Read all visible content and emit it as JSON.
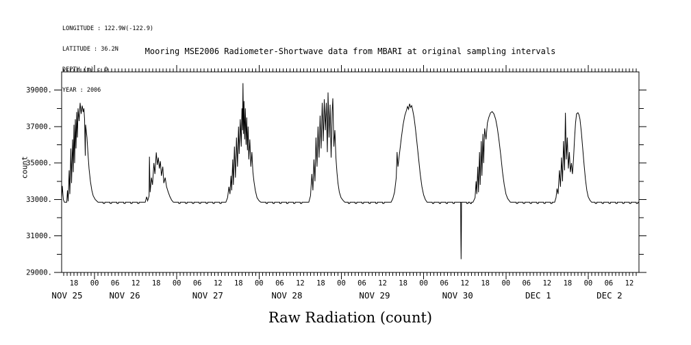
{
  "page": {
    "background": "#ffffff",
    "text_color": "#000000"
  },
  "header": {
    "meta_lines": [
      "LONGITUDE : 122.9W(-122.9)",
      "LATITUDE : 36.2N",
      "DEPTH (m) : 0",
      "YEAR : 2006"
    ]
  },
  "chart_data": {
    "type": "line",
    "title": "Mooring MSE2006 Radiometer-Shortwave data from MBARI at original sampling intervals",
    "xlabel": "Raw Radiation (count)",
    "ylabel": "count",
    "line_color": "#000000",
    "grid": false,
    "legend": "none",
    "y_axis": {
      "range": [
        29000,
        40000
      ],
      "major_ticks": [
        29000,
        31000,
        33000,
        35000,
        37000,
        39000
      ],
      "major_tick_labels": [
        "29000.",
        "31000.",
        "33000.",
        "35000.",
        "37000.",
        "39000."
      ],
      "minor_step": 1000
    },
    "x_axis": {
      "units": "hours since NOV 25 00:00",
      "range_hours": [
        14.4,
        182.8
      ],
      "minor_tick_every_h": 1,
      "labeled_tick_every_h": 6,
      "hour_label_cycle": [
        "00",
        "06",
        "12",
        "18"
      ],
      "date_labels": [
        {
          "label": "NOV 25",
          "t": 16.0
        },
        {
          "label": "NOV 26",
          "t": 32.8
        },
        {
          "label": "NOV 27",
          "t": 57.0
        },
        {
          "label": "NOV 28",
          "t": 80.1
        },
        {
          "label": "NOV 29",
          "t": 105.7
        },
        {
          "label": "NOV 30",
          "t": 129.9
        },
        {
          "label": "DEC  1",
          "t": 153.4
        },
        {
          "label": "DEC  2",
          "t": 174.2
        }
      ]
    },
    "baseline_count": 32850,
    "notch_count": 32780,
    "baseline_notch_times_h": [
      26.5,
      28.5,
      30.5,
      32.5,
      34.5,
      36.5,
      48.5,
      50.5,
      52.5,
      54.5,
      56.5,
      58.5,
      60.5,
      74,
      76,
      78,
      80,
      82,
      84,
      98,
      100,
      102,
      104,
      106,
      108,
      122.5,
      124.5,
      126.5,
      128.5,
      132.5,
      133.5,
      147,
      149,
      151,
      153,
      155,
      157,
      170,
      172,
      174,
      176,
      178,
      180,
      182
    ],
    "series": [
      [
        14.4,
        33060
      ],
      [
        14.6,
        33740
      ],
      [
        14.9,
        33000
      ],
      [
        15.2,
        32850
      ],
      [
        15.9,
        32850
      ],
      [
        16.1,
        33500
      ],
      [
        16.3,
        32900
      ],
      [
        16.6,
        34600
      ],
      [
        16.8,
        33300
      ],
      [
        17.1,
        35800
      ],
      [
        17.3,
        33900
      ],
      [
        17.6,
        36300
      ],
      [
        17.8,
        34500
      ],
      [
        18.0,
        37100
      ],
      [
        18.2,
        35000
      ],
      [
        18.4,
        37400
      ],
      [
        18.6,
        35800
      ],
      [
        18.8,
        37800
      ],
      [
        19.0,
        36400
      ],
      [
        19.2,
        38000
      ],
      [
        19.5,
        37300
      ],
      [
        19.8,
        38300
      ],
      [
        20.1,
        37700
      ],
      [
        20.4,
        38150
      ],
      [
        20.7,
        37800
      ],
      [
        20.9,
        38000
      ],
      [
        21.1,
        37400
      ],
      [
        21.3,
        35400
      ],
      [
        21.4,
        37100
      ],
      [
        21.8,
        36400
      ],
      [
        22.1,
        35500
      ],
      [
        22.4,
        34700
      ],
      [
        22.8,
        34000
      ],
      [
        23.2,
        33500
      ],
      [
        23.6,
        33200
      ],
      [
        24.2,
        33000
      ],
      [
        25.0,
        32850
      ],
      [
        38.8,
        32850
      ],
      [
        39.2,
        33150
      ],
      [
        39.5,
        32930
      ],
      [
        39.9,
        33200
      ],
      [
        40.0,
        35350
      ],
      [
        40.2,
        33400
      ],
      [
        40.6,
        34200
      ],
      [
        40.9,
        33800
      ],
      [
        41.3,
        35000
      ],
      [
        41.6,
        34400
      ],
      [
        42.0,
        35580
      ],
      [
        42.3,
        34900
      ],
      [
        42.6,
        35300
      ],
      [
        42.9,
        34700
      ],
      [
        43.2,
        35100
      ],
      [
        43.5,
        34300
      ],
      [
        43.9,
        34800
      ],
      [
        44.2,
        33900
      ],
      [
        44.6,
        34200
      ],
      [
        45.0,
        33700
      ],
      [
        45.5,
        33400
      ],
      [
        46.0,
        33150
      ],
      [
        46.5,
        32960
      ],
      [
        47.0,
        32850
      ],
      [
        62.3,
        32850
      ],
      [
        62.8,
        33100
      ],
      [
        63.2,
        33700
      ],
      [
        63.5,
        33300
      ],
      [
        63.8,
        34300
      ],
      [
        64.0,
        33500
      ],
      [
        64.3,
        35200
      ],
      [
        64.5,
        33800
      ],
      [
        64.8,
        35900
      ],
      [
        65.1,
        34200
      ],
      [
        65.4,
        36400
      ],
      [
        65.7,
        34800
      ],
      [
        66.0,
        37000
      ],
      [
        66.2,
        35500
      ],
      [
        66.5,
        37400
      ],
      [
        66.8,
        35900
      ],
      [
        67.0,
        38000
      ],
      [
        67.15,
        36800
      ],
      [
        67.3,
        39380
      ],
      [
        67.45,
        36600
      ],
      [
        67.6,
        38400
      ],
      [
        67.8,
        36300
      ],
      [
        68.0,
        38000
      ],
      [
        68.2,
        36000
      ],
      [
        68.4,
        37500
      ],
      [
        68.6,
        35700
      ],
      [
        68.8,
        37000
      ],
      [
        69.0,
        35200
      ],
      [
        69.3,
        36300
      ],
      [
        69.6,
        34800
      ],
      [
        69.9,
        35600
      ],
      [
        70.2,
        34500
      ],
      [
        70.5,
        34000
      ],
      [
        70.9,
        33500
      ],
      [
        71.4,
        33100
      ],
      [
        72.0,
        32930
      ],
      [
        72.5,
        32850
      ],
      [
        86.5,
        32850
      ],
      [
        87.0,
        33200
      ],
      [
        87.4,
        34400
      ],
      [
        87.7,
        33500
      ],
      [
        88.0,
        35200
      ],
      [
        88.3,
        34000
      ],
      [
        88.6,
        36400
      ],
      [
        88.9,
        34800
      ],
      [
        89.2,
        37000
      ],
      [
        89.5,
        35300
      ],
      [
        89.8,
        37600
      ],
      [
        90.1,
        35800
      ],
      [
        90.4,
        38300
      ],
      [
        90.7,
        36200
      ],
      [
        91.0,
        38500
      ],
      [
        91.3,
        36800
      ],
      [
        91.6,
        38300
      ],
      [
        91.9,
        35600
      ],
      [
        92.1,
        38870
      ],
      [
        92.4,
        36400
      ],
      [
        92.7,
        38200
      ],
      [
        93.0,
        35300
      ],
      [
        93.3,
        37800
      ],
      [
        93.5,
        38550
      ],
      [
        93.8,
        35900
      ],
      [
        94.1,
        36800
      ],
      [
        94.4,
        35300
      ],
      [
        94.7,
        34500
      ],
      [
        95.0,
        33900
      ],
      [
        95.4,
        33400
      ],
      [
        95.9,
        33100
      ],
      [
        96.5,
        32950
      ],
      [
        97.0,
        32850
      ],
      [
        110.5,
        32850
      ],
      [
        111.0,
        33050
      ],
      [
        111.5,
        33400
      ],
      [
        112.0,
        34200
      ],
      [
        112.25,
        35600
      ],
      [
        112.5,
        34800
      ],
      [
        113.0,
        35600
      ],
      [
        113.5,
        36400
      ],
      [
        114.0,
        37100
      ],
      [
        114.5,
        37600
      ],
      [
        115.0,
        37900
      ],
      [
        115.3,
        38100
      ],
      [
        115.6,
        37950
      ],
      [
        115.9,
        38250
      ],
      [
        116.2,
        38050
      ],
      [
        116.5,
        38150
      ],
      [
        116.8,
        37900
      ],
      [
        117.2,
        37500
      ],
      [
        117.6,
        36900
      ],
      [
        118.0,
        36200
      ],
      [
        118.5,
        35300
      ],
      [
        119.0,
        34400
      ],
      [
        119.5,
        33700
      ],
      [
        120.0,
        33250
      ],
      [
        120.5,
        33000
      ],
      [
        121.0,
        32850
      ],
      [
        130.8,
        32850
      ],
      [
        130.85,
        31280
      ],
      [
        130.92,
        29730
      ],
      [
        131.0,
        31280
      ],
      [
        131.05,
        32850
      ],
      [
        134.4,
        32850
      ],
      [
        135.0,
        33100
      ],
      [
        135.3,
        34000
      ],
      [
        135.5,
        33300
      ],
      [
        135.8,
        34800
      ],
      [
        136.0,
        33400
      ],
      [
        136.3,
        35600
      ],
      [
        136.5,
        33800
      ],
      [
        136.8,
        36200
      ],
      [
        137.0,
        34300
      ],
      [
        137.3,
        36600
      ],
      [
        137.5,
        35000
      ],
      [
        137.8,
        36900
      ],
      [
        138.2,
        36300
      ],
      [
        138.6,
        37200
      ],
      [
        139.0,
        37500
      ],
      [
        139.5,
        37750
      ],
      [
        140.0,
        37820
      ],
      [
        140.5,
        37700
      ],
      [
        141.0,
        37400
      ],
      [
        141.5,
        36900
      ],
      [
        142.0,
        36200
      ],
      [
        142.5,
        35400
      ],
      [
        143.0,
        34500
      ],
      [
        143.5,
        33800
      ],
      [
        144.0,
        33300
      ],
      [
        144.5,
        33050
      ],
      [
        145.3,
        32850
      ],
      [
        158.2,
        32850
      ],
      [
        158.6,
        33100
      ],
      [
        158.9,
        33600
      ],
      [
        159.2,
        33300
      ],
      [
        159.6,
        34600
      ],
      [
        159.9,
        33700
      ],
      [
        160.2,
        35300
      ],
      [
        160.5,
        34000
      ],
      [
        160.8,
        36200
      ],
      [
        161.1,
        34600
      ],
      [
        161.35,
        37760
      ],
      [
        161.6,
        35200
      ],
      [
        161.9,
        36400
      ],
      [
        162.2,
        34700
      ],
      [
        162.5,
        35600
      ],
      [
        162.8,
        34500
      ],
      [
        163.1,
        35000
      ],
      [
        163.4,
        34400
      ],
      [
        163.7,
        35200
      ],
      [
        164.0,
        36300
      ],
      [
        164.3,
        37200
      ],
      [
        164.6,
        37700
      ],
      [
        165.0,
        37760
      ],
      [
        165.3,
        37650
      ],
      [
        165.6,
        37400
      ],
      [
        166.0,
        36700
      ],
      [
        166.4,
        35800
      ],
      [
        166.8,
        34900
      ],
      [
        167.2,
        34100
      ],
      [
        167.6,
        33500
      ],
      [
        168.0,
        33150
      ],
      [
        168.5,
        32960
      ],
      [
        169.0,
        32850
      ],
      [
        182.8,
        32850
      ]
    ]
  }
}
